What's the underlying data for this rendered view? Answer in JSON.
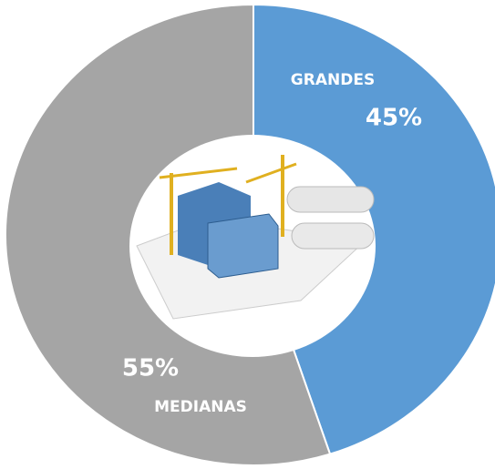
{
  "chart_data": {
    "type": "donut",
    "categories": [
      "GRANDES",
      "MEDIANAS"
    ],
    "values": [
      45,
      55
    ],
    "value_labels": [
      "45%",
      "55%"
    ],
    "colors": [
      "#5b9bd5",
      "#a5a5a5"
    ]
  }
}
